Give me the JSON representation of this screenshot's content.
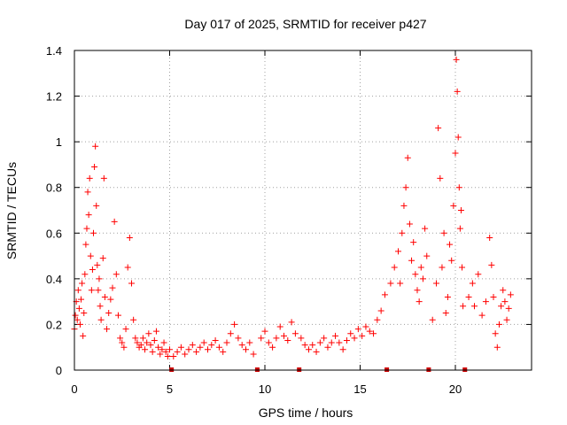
{
  "chart_data": {
    "type": "scatter",
    "title": "Day 017 of 2025, SRMTID for receiver p427",
    "xlabel": "GPS time / hours",
    "ylabel": "SRMTID / TECUs",
    "xlim": [
      0,
      24
    ],
    "ylim": [
      0,
      1.4
    ],
    "xticks": [
      0,
      5,
      10,
      15,
      20
    ],
    "xtick_labels": [
      "0",
      "5",
      "10",
      "15",
      "20"
    ],
    "yticks": [
      0,
      0.2,
      0.4,
      0.6,
      0.8,
      1.0,
      1.2,
      1.4
    ],
    "ytick_labels": [
      "0",
      "0.2",
      "0.4",
      "0.6",
      "0.8",
      "1",
      "1.2",
      "1.4"
    ],
    "grid": true,
    "marker": "+",
    "series_color": "#ff0000",
    "gap_marker_color": "#cc0000",
    "gap_markers_x": [
      5.1,
      9.6,
      11.8,
      16.4,
      18.6,
      20.5
    ],
    "series": [
      {
        "name": "SRMTID",
        "points": [
          [
            0.0,
            0.18
          ],
          [
            0.05,
            0.24
          ],
          [
            0.1,
            0.3
          ],
          [
            0.15,
            0.22
          ],
          [
            0.2,
            0.35
          ],
          [
            0.25,
            0.27
          ],
          [
            0.3,
            0.2
          ],
          [
            0.35,
            0.31
          ],
          [
            0.4,
            0.38
          ],
          [
            0.45,
            0.15
          ],
          [
            0.5,
            0.25
          ],
          [
            0.55,
            0.42
          ],
          [
            0.6,
            0.55
          ],
          [
            0.65,
            0.62
          ],
          [
            0.7,
            0.78
          ],
          [
            0.75,
            0.68
          ],
          [
            0.8,
            0.84
          ],
          [
            0.85,
            0.5
          ],
          [
            0.9,
            0.35
          ],
          [
            0.95,
            0.44
          ],
          [
            1.0,
            0.6
          ],
          [
            1.05,
            0.89
          ],
          [
            1.1,
            0.98
          ],
          [
            1.15,
            0.72
          ],
          [
            1.2,
            0.46
          ],
          [
            1.25,
            0.35
          ],
          [
            1.3,
            0.4
          ],
          [
            1.35,
            0.28
          ],
          [
            1.4,
            0.22
          ],
          [
            1.5,
            0.49
          ],
          [
            1.55,
            0.84
          ],
          [
            1.6,
            0.32
          ],
          [
            1.7,
            0.18
          ],
          [
            1.8,
            0.25
          ],
          [
            1.9,
            0.31
          ],
          [
            2.0,
            0.36
          ],
          [
            2.1,
            0.65
          ],
          [
            2.2,
            0.42
          ],
          [
            2.3,
            0.24
          ],
          [
            2.4,
            0.14
          ],
          [
            2.5,
            0.12
          ],
          [
            2.6,
            0.1
          ],
          [
            2.7,
            0.18
          ],
          [
            2.8,
            0.45
          ],
          [
            2.9,
            0.58
          ],
          [
            3.0,
            0.38
          ],
          [
            3.1,
            0.22
          ],
          [
            3.2,
            0.14
          ],
          [
            3.3,
            0.12
          ],
          [
            3.4,
            0.1
          ],
          [
            3.5,
            0.11
          ],
          [
            3.6,
            0.14
          ],
          [
            3.7,
            0.09
          ],
          [
            3.8,
            0.12
          ],
          [
            3.9,
            0.16
          ],
          [
            4.0,
            0.11
          ],
          [
            4.1,
            0.08
          ],
          [
            4.2,
            0.13
          ],
          [
            4.3,
            0.17
          ],
          [
            4.4,
            0.1
          ],
          [
            4.5,
            0.07
          ],
          [
            4.6,
            0.09
          ],
          [
            4.7,
            0.12
          ],
          [
            4.8,
            0.08
          ],
          [
            4.9,
            0.06
          ],
          [
            5.0,
            0.09
          ],
          [
            5.2,
            0.06
          ],
          [
            5.4,
            0.08
          ],
          [
            5.6,
            0.1
          ],
          [
            5.8,
            0.07
          ],
          [
            6.0,
            0.09
          ],
          [
            6.2,
            0.11
          ],
          [
            6.4,
            0.08
          ],
          [
            6.6,
            0.1
          ],
          [
            6.8,
            0.12
          ],
          [
            7.0,
            0.09
          ],
          [
            7.2,
            0.11
          ],
          [
            7.4,
            0.13
          ],
          [
            7.6,
            0.1
          ],
          [
            7.8,
            0.08
          ],
          [
            8.0,
            0.12
          ],
          [
            8.2,
            0.16
          ],
          [
            8.4,
            0.2
          ],
          [
            8.6,
            0.14
          ],
          [
            8.8,
            0.11
          ],
          [
            9.0,
            0.09
          ],
          [
            9.2,
            0.12
          ],
          [
            9.4,
            0.07
          ],
          [
            9.8,
            0.14
          ],
          [
            10.0,
            0.17
          ],
          [
            10.2,
            0.12
          ],
          [
            10.4,
            0.1
          ],
          [
            10.6,
            0.14
          ],
          [
            10.8,
            0.19
          ],
          [
            11.0,
            0.15
          ],
          [
            11.2,
            0.13
          ],
          [
            11.4,
            0.21
          ],
          [
            11.6,
            0.16
          ],
          [
            11.9,
            0.14
          ],
          [
            12.1,
            0.11
          ],
          [
            12.3,
            0.09
          ],
          [
            12.5,
            0.11
          ],
          [
            12.7,
            0.08
          ],
          [
            12.9,
            0.12
          ],
          [
            13.1,
            0.14
          ],
          [
            13.3,
            0.1
          ],
          [
            13.5,
            0.12
          ],
          [
            13.7,
            0.15
          ],
          [
            13.9,
            0.12
          ],
          [
            14.1,
            0.09
          ],
          [
            14.3,
            0.13
          ],
          [
            14.5,
            0.16
          ],
          [
            14.7,
            0.14
          ],
          [
            14.9,
            0.18
          ],
          [
            15.1,
            0.15
          ],
          [
            15.3,
            0.19
          ],
          [
            15.5,
            0.17
          ],
          [
            15.7,
            0.16
          ],
          [
            15.9,
            0.22
          ],
          [
            16.1,
            0.26
          ],
          [
            16.3,
            0.33
          ],
          [
            16.6,
            0.38
          ],
          [
            16.8,
            0.45
          ],
          [
            17.0,
            0.52
          ],
          [
            17.1,
            0.38
          ],
          [
            17.2,
            0.6
          ],
          [
            17.3,
            0.72
          ],
          [
            17.4,
            0.8
          ],
          [
            17.5,
            0.93
          ],
          [
            17.6,
            0.64
          ],
          [
            17.7,
            0.48
          ],
          [
            17.8,
            0.56
          ],
          [
            17.9,
            0.42
          ],
          [
            18.0,
            0.35
          ],
          [
            18.1,
            0.3
          ],
          [
            18.2,
            0.45
          ],
          [
            18.3,
            0.4
          ],
          [
            18.4,
            0.62
          ],
          [
            18.5,
            0.5
          ],
          [
            18.8,
            0.22
          ],
          [
            19.0,
            0.38
          ],
          [
            19.1,
            1.06
          ],
          [
            19.2,
            0.84
          ],
          [
            19.3,
            0.45
          ],
          [
            19.4,
            0.6
          ],
          [
            19.5,
            0.25
          ],
          [
            19.6,
            0.32
          ],
          [
            19.7,
            0.55
          ],
          [
            19.8,
            0.48
          ],
          [
            19.9,
            0.72
          ],
          [
            20.0,
            0.95
          ],
          [
            20.05,
            1.36
          ],
          [
            20.1,
            1.22
          ],
          [
            20.15,
            1.02
          ],
          [
            20.2,
            0.8
          ],
          [
            20.25,
            0.62
          ],
          [
            20.3,
            0.7
          ],
          [
            20.35,
            0.45
          ],
          [
            20.4,
            0.28
          ],
          [
            20.7,
            0.32
          ],
          [
            20.9,
            0.38
          ],
          [
            21.0,
            0.28
          ],
          [
            21.2,
            0.42
          ],
          [
            21.4,
            0.24
          ],
          [
            21.6,
            0.3
          ],
          [
            21.8,
            0.58
          ],
          [
            21.9,
            0.46
          ],
          [
            22.0,
            0.32
          ],
          [
            22.1,
            0.16
          ],
          [
            22.2,
            0.1
          ],
          [
            22.3,
            0.2
          ],
          [
            22.4,
            0.28
          ],
          [
            22.5,
            0.35
          ],
          [
            22.6,
            0.3
          ],
          [
            22.7,
            0.22
          ],
          [
            22.8,
            0.27
          ],
          [
            22.9,
            0.33
          ]
        ]
      }
    ]
  }
}
